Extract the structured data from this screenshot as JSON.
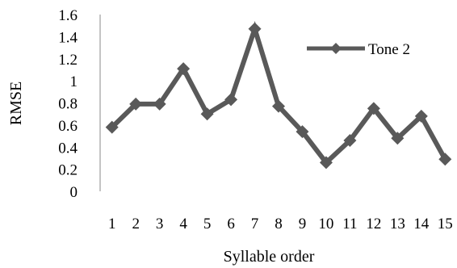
{
  "chart_data": {
    "type": "line",
    "title": "",
    "xlabel": "Syllable order",
    "ylabel": "RMSE",
    "categories": [
      "1",
      "2",
      "3",
      "4",
      "5",
      "6",
      "7",
      "8",
      "9",
      "10",
      "11",
      "12",
      "13",
      "14",
      "15"
    ],
    "ylim": [
      0,
      1.6
    ],
    "yticks": [
      "0",
      "0.2",
      "0.4",
      "0.6",
      "0.8",
      "1",
      "1.2",
      "1.4",
      "1.6"
    ],
    "grid": false,
    "legend_position": "top-right",
    "series": [
      {
        "name": "Tone 2",
        "color": "#595959",
        "marker": "diamond",
        "values": [
          0.58,
          0.79,
          0.79,
          1.11,
          0.7,
          0.83,
          1.47,
          0.77,
          0.54,
          0.26,
          0.46,
          0.75,
          0.48,
          0.68,
          0.29
        ]
      }
    ]
  }
}
